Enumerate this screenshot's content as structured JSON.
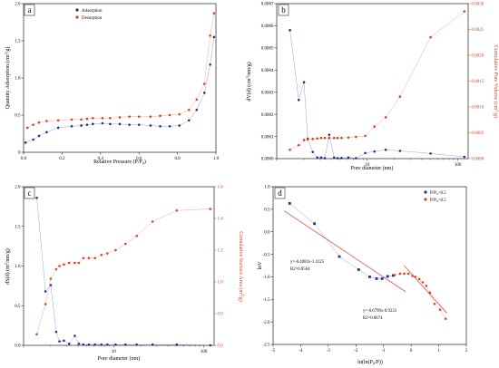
{
  "chart_data": [
    {
      "type": "scatter",
      "panel": "a",
      "xlabel": "Relative Pressure (P/P0)",
      "ylabel": "Quantity Adsorption (cm3/g)",
      "xlim": [
        0,
        1.0
      ],
      "ylim": [
        0,
        2.0
      ],
      "xticks": [
        "0.0",
        "0.2",
        "0.4",
        "0.6",
        "0.8",
        "1.0"
      ],
      "yticks": [
        "0",
        "0.5",
        "1.0",
        "1.5",
        "2.0"
      ],
      "legend_position": "top-left",
      "series": [
        {
          "name": "Adsorption",
          "color": "#1f2f9e",
          "x": [
            0.01,
            0.05,
            0.08,
            0.12,
            0.18,
            0.25,
            0.3,
            0.33,
            0.36,
            0.41,
            0.45,
            0.5,
            0.55,
            0.6,
            0.66,
            0.71,
            0.76,
            0.81,
            0.86,
            0.9,
            0.94,
            0.97,
            0.99
          ],
          "y": [
            0.13,
            0.17,
            0.22,
            0.27,
            0.33,
            0.35,
            0.36,
            0.37,
            0.38,
            0.39,
            0.38,
            0.38,
            0.37,
            0.37,
            0.36,
            0.35,
            0.35,
            0.36,
            0.43,
            0.57,
            0.8,
            1.18,
            1.55
          ]
        },
        {
          "name": "Desorption",
          "color": "#d9431b",
          "x": [
            0.99,
            0.97,
            0.94,
            0.9,
            0.86,
            0.81,
            0.76,
            0.71,
            0.66,
            0.6,
            0.55,
            0.5,
            0.45,
            0.41,
            0.36,
            0.33,
            0.3,
            0.25,
            0.18,
            0.12,
            0.08,
            0.05,
            0.02
          ],
          "y": [
            1.87,
            1.57,
            0.92,
            0.71,
            0.57,
            0.51,
            0.5,
            0.49,
            0.48,
            0.48,
            0.48,
            0.47,
            0.46,
            0.46,
            0.46,
            0.45,
            0.44,
            0.44,
            0.43,
            0.42,
            0.4,
            0.37,
            0.33
          ]
        }
      ]
    },
    {
      "type": "scatter",
      "panel": "b",
      "xlabel": "Pore diameter (nm)",
      "ylabel": "dV(d) (cm3/nm/g)",
      "y2label": "Cumulative Pore Volume (cm3/g)",
      "x_scale": "log",
      "xlim": [
        1,
        130
      ],
      "ylim": [
        0,
        0.0007
      ],
      "y2lim": [
        0,
        0.003
      ],
      "xticks": [
        "10",
        "100"
      ],
      "yticks": [
        "0.0000",
        "0.0001",
        "0.0002",
        "0.0003",
        "0.0004",
        "0.0005",
        "0.0006",
        "0.0007"
      ],
      "y2ticks": [
        "0.0000",
        "0.0005",
        "0.0010",
        "0.0015",
        "0.0020",
        "0.0025",
        "0.0030"
      ],
      "series": [
        {
          "name": "dV(d)",
          "axis": "left",
          "color": "#1f2f9e",
          "x": [
            1.4,
            1.75,
            2.0,
            2.2,
            2.5,
            2.8,
            3.1,
            3.4,
            3.8,
            4.3,
            4.7,
            5.2,
            6.2,
            7.5,
            9.5,
            12,
            16,
            23,
            50,
            118
          ],
          "y": [
            0.00058,
            0.000265,
            0.000345,
            9e-05,
            3e-05,
            5e-06,
            5e-06,
            2e-06,
            0.000108,
            5e-06,
            2e-06,
            3e-06,
            5e-06,
            2e-06,
            2.5e-05,
            3.2e-05,
            4e-05,
            3.5e-05,
            2.3e-05,
            8e-06
          ]
        },
        {
          "axis": "right",
          "color": "#d9431b",
          "x": [
            1.4,
            1.75,
            2.0,
            2.2,
            2.5,
            2.8,
            3.1,
            3.4,
            3.8,
            4.3,
            4.7,
            5.2,
            6.2,
            7.5,
            9.5,
            12,
            16,
            23,
            50,
            118
          ],
          "y": [
            0.00017,
            0.00026,
            0.00036,
            0.00037,
            0.00038,
            0.00039,
            0.0004,
            0.0004,
            0.0004,
            0.0004,
            0.0004,
            0.0004,
            0.00041,
            0.00042,
            0.00044,
            0.00062,
            0.0008,
            0.0012,
            0.00235,
            0.00285
          ]
        }
      ]
    },
    {
      "type": "scatter",
      "panel": "c",
      "xlabel": "Pore diameter (nm)",
      "ylabel": "dS(d) (m2/nm/g)",
      "y2label": "Cumulative Surface Area (m2/g)",
      "x_scale": "log",
      "xlim": [
        1,
        130
      ],
      "ylim": [
        0,
        2.0
      ],
      "y2lim": [
        0.6,
        1.6
      ],
      "xticks": [
        "10",
        "100"
      ],
      "yticks": [
        "0.0",
        "0.5",
        "1.0",
        "1.5",
        "2.0"
      ],
      "y2ticks": [
        "0.6",
        "0.8",
        "1.0",
        "1.2",
        "1.4",
        "1.6"
      ],
      "series": [
        {
          "name": "dS(d)",
          "axis": "left",
          "color": "#1f2f9e",
          "x": [
            1.4,
            1.75,
            2.0,
            2.3,
            2.5,
            2.8,
            3.2,
            3.7,
            4.1,
            4.6,
            5.3,
            6.2,
            7.3,
            8.5,
            10.5,
            13.5,
            18,
            27,
            50,
            118
          ],
          "y": [
            1.86,
            0.68,
            0.76,
            0.17,
            0.05,
            0.06,
            0.02,
            0.12,
            0.02,
            0.01,
            0.01,
            0.01,
            0.01,
            0.01,
            0.01,
            0.01,
            0.01,
            0.01,
            0.01,
            0.0
          ]
        },
        {
          "axis": "right",
          "color": "#d9431b",
          "x": [
            1.4,
            1.75,
            2.0,
            2.3,
            2.5,
            2.8,
            3.2,
            3.7,
            4.1,
            4.6,
            5.3,
            6.2,
            7.3,
            8.5,
            10.5,
            13.5,
            18,
            27,
            50,
            118
          ],
          "y": [
            0.67,
            0.86,
            1.02,
            1.08,
            1.1,
            1.11,
            1.12,
            1.12,
            1.12,
            1.15,
            1.15,
            1.15,
            1.17,
            1.18,
            1.2,
            1.24,
            1.29,
            1.38,
            1.45,
            1.46
          ]
        }
      ]
    },
    {
      "type": "scatter",
      "panel": "d",
      "xlabel": "ln(ln(P0/P))",
      "ylabel": "lnV",
      "xlim": [
        -5,
        2
      ],
      "ylim": [
        -2.5,
        1.0
      ],
      "xticks": [
        "-5",
        "-4",
        "-3",
        "-2",
        "-1",
        "0",
        "1",
        "2"
      ],
      "yticks": [
        "-2.5",
        "-2.0",
        "-1.5",
        "-1.0",
        "-0.5",
        "0.0",
        "0.5",
        "1.0"
      ],
      "legend_position": "top-right",
      "series": [
        {
          "name": "P/P0<0.5",
          "color": "#1f2f9e",
          "x": [
            -4.4,
            -3.5,
            -2.6,
            -1.9,
            -1.5,
            -1.25,
            -1.05,
            -0.85,
            -0.65
          ],
          "y": [
            0.63,
            0.18,
            -0.55,
            -0.84,
            -1.0,
            -1.04,
            -1.04,
            -0.99,
            -0.97
          ]
        },
        {
          "name": "P/P0>0.5",
          "color": "#d9431b",
          "x": [
            -0.6,
            -0.4,
            -0.25,
            -0.1,
            0.05,
            0.15,
            0.3,
            0.42,
            0.55,
            0.68,
            0.85,
            1.05,
            1.25
          ],
          "y": [
            -0.96,
            -0.93,
            -0.93,
            -0.93,
            -0.98,
            -1.0,
            -1.05,
            -1.12,
            -1.2,
            -1.35,
            -1.6,
            -1.73,
            -1.93
          ]
        }
      ],
      "fit_lines": [
        {
          "color": "#e05050",
          "slope": -0.4083,
          "intercept": -1.4125,
          "x_range": [
            -4.6,
            -0.2
          ]
        },
        {
          "color": "#e05050",
          "slope": -0.6799,
          "intercept": -0.9233,
          "x_range": [
            -0.25,
            1.3
          ]
        }
      ],
      "annotations": [
        "y=-0.4083x-1.4125",
        "R2=0.8564",
        "y=-0.6799x-0.9233",
        "R2=0.8874"
      ]
    }
  ],
  "panel_labels": [
    "a",
    "b",
    "c",
    "d"
  ]
}
